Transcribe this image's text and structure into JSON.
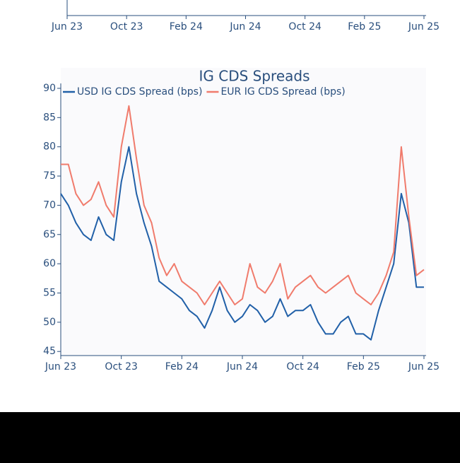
{
  "chart_data": [
    {
      "type": "line",
      "xlim": [
        0,
        24
      ],
      "xticks": [
        {
          "value": 0,
          "label": "Jun 23"
        },
        {
          "value": 4,
          "label": "Oct 23"
        },
        {
          "value": 8,
          "label": "Feb 24"
        },
        {
          "value": 12,
          "label": "Jun 24"
        },
        {
          "value": 16,
          "label": "Oct 24"
        },
        {
          "value": 20,
          "label": "Feb 25"
        },
        {
          "value": 24,
          "label": "Jun 25"
        }
      ]
    },
    {
      "type": "line",
      "title": "IG CDS Spreads",
      "xlim": [
        0,
        24
      ],
      "xticks": [
        {
          "value": 0,
          "label": "Jun 23"
        },
        {
          "value": 4,
          "label": "Oct 23"
        },
        {
          "value": 8,
          "label": "Feb 24"
        },
        {
          "value": 12,
          "label": "Jun 24"
        },
        {
          "value": 16,
          "label": "Oct 24"
        },
        {
          "value": 20,
          "label": "Feb 25"
        },
        {
          "value": 24,
          "label": "Jun 25"
        }
      ],
      "ylim": [
        44.3,
        93.5
      ],
      "yticks": [
        45,
        50,
        55,
        60,
        65,
        70,
        75,
        80,
        85,
        90
      ],
      "x": [
        0,
        0.5,
        1,
        1.5,
        2,
        2.5,
        3,
        3.5,
        4,
        4.5,
        5,
        5.5,
        6,
        6.5,
        7,
        7.5,
        8,
        8.5,
        9,
        9.5,
        10,
        10.5,
        11,
        11.5,
        12,
        12.5,
        13,
        13.5,
        14,
        14.5,
        15,
        15.5,
        16,
        16.5,
        17,
        17.5,
        18,
        18.5,
        19,
        19.5,
        20,
        20.5,
        21,
        21.5,
        22,
        22.5,
        23,
        23.5,
        24
      ],
      "series": [
        {
          "name": "USD IG CDS Spread (bps)",
          "color": "#2160a8",
          "values": [
            72,
            70,
            67,
            65,
            64,
            68,
            65,
            64,
            74,
            80,
            72,
            67,
            63,
            57,
            56,
            55,
            54,
            52,
            51,
            49,
            52,
            56,
            52,
            50,
            51,
            53,
            52,
            50,
            51,
            54,
            51,
            52,
            52,
            53,
            50,
            48,
            48,
            50,
            51,
            48,
            48,
            47,
            52,
            56,
            60,
            72,
            67,
            56,
            56
          ]
        },
        {
          "name": "EUR IG CDS Spread (bps)",
          "color": "#f07b6c",
          "values": [
            77,
            77,
            72,
            70,
            71,
            74,
            70,
            68,
            80,
            87,
            78,
            70,
            67,
            61,
            58,
            60,
            57,
            56,
            55,
            53,
            55,
            57,
            55,
            53,
            54,
            60,
            56,
            55,
            57,
            60,
            54,
            56,
            57,
            58,
            56,
            55,
            56,
            57,
            58,
            55,
            54,
            53,
            55,
            58,
            62,
            80,
            68,
            58,
            59
          ]
        }
      ]
    }
  ]
}
